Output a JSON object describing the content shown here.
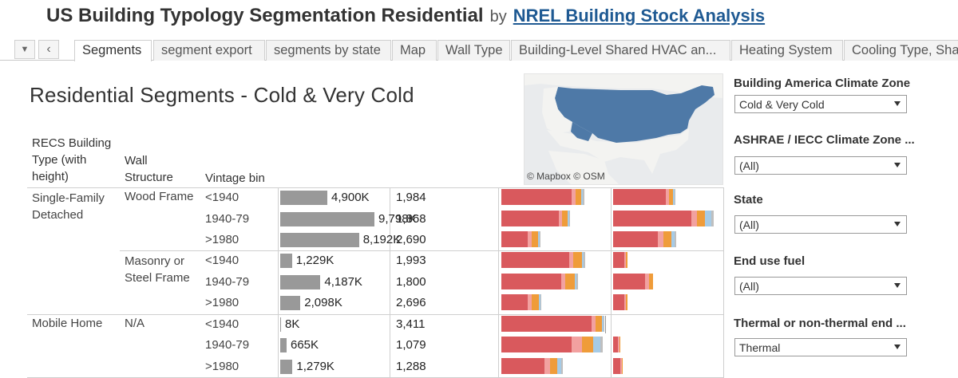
{
  "header": {
    "title": "US Building Typology Segmentation Residential",
    "by": "by",
    "author": "NREL Building Stock Analysis"
  },
  "tabs": {
    "nav_down": "▼",
    "nav_left": "‹",
    "items": [
      "Segments",
      "segment export",
      "segments by state",
      "Map",
      "Wall Type",
      "Building-Level Shared HVAC an...",
      "Heating System",
      "Cooling Type, Sha"
    ],
    "active_index": 0
  },
  "sheet": {
    "title": "Residential Segments - Cold & Very Cold"
  },
  "map": {
    "attribution": "© Mapbox © OSM",
    "colors": {
      "land": "#f3f3f1",
      "water": "#e9ebed",
      "highlight": "#4e79a7"
    }
  },
  "table": {
    "col_headers": {
      "building_type": "RECS Building Type (with height)",
      "wall": "Wall Structure",
      "vintage": "Vintage bin"
    },
    "groups": [
      {
        "type": "Single-Family Detached",
        "wall": "Wood Frame"
      },
      {
        "type": "",
        "wall": "Masonry or Steel Frame"
      },
      {
        "type": "Mobile Home",
        "wall": "N/A"
      }
    ],
    "rows": [
      {
        "vintage": "<1940",
        "units": "4,900K",
        "units_value": 4900,
        "count": "1,984",
        "stack1": [
          88,
          5,
          7,
          2,
          2
        ],
        "stack2": [
          66,
          4,
          5,
          2,
          1
        ]
      },
      {
        "vintage": "1940-79",
        "units": "9,798K",
        "units_value": 9798,
        "count": "1,868",
        "stack1": [
          72,
          4,
          7,
          2,
          1
        ],
        "stack2": [
          98,
          7,
          10,
          8,
          3
        ]
      },
      {
        "vintage": ">1980",
        "units": "8,192K",
        "units_value": 8192,
        "count": "2,690",
        "stack1": [
          33,
          5,
          8,
          2,
          1
        ],
        "stack2": [
          56,
          7,
          10,
          4,
          2
        ]
      },
      {
        "vintage": "<1940",
        "units": "1,229K",
        "units_value": 1229,
        "count": "1,993",
        "stack1": [
          85,
          5,
          11,
          2,
          2
        ],
        "stack2": [
          14,
          2,
          2,
          0,
          0
        ]
      },
      {
        "vintage": "1940-79",
        "units": "4,187K",
        "units_value": 4187,
        "count": "1,800",
        "stack1": [
          75,
          5,
          12,
          2,
          2
        ],
        "stack2": [
          40,
          5,
          5,
          0,
          0
        ]
      },
      {
        "vintage": ">1980",
        "units": "2,098K",
        "units_value": 2098,
        "count": "2,696",
        "stack1": [
          33,
          5,
          9,
          2,
          1
        ],
        "stack2": [
          14,
          2,
          2,
          0,
          0
        ]
      },
      {
        "vintage": "<1940",
        "units": "8K",
        "units_value": 8,
        "count": "3,411",
        "stack1": [
          113,
          5,
          8,
          2,
          1
        ],
        "stack2": [
          0,
          0,
          0,
          0,
          0
        ]
      },
      {
        "vintage": "1940-79",
        "units": "665K",
        "units_value": 665,
        "count": "1,079",
        "stack1": [
          88,
          13,
          14,
          9,
          3
        ],
        "stack2": [
          6,
          2,
          1,
          0,
          0
        ]
      },
      {
        "vintage": ">1980",
        "units": "1,279K",
        "units_value": 1279,
        "count": "1,288",
        "stack1": [
          54,
          7,
          9,
          5,
          2
        ],
        "stack2": [
          9,
          2,
          1,
          0,
          0
        ]
      }
    ],
    "max_units": 9798,
    "bar_color": "#999999"
  },
  "filters": [
    {
      "label": "Building America Climate Zone",
      "value": "Cold & Very Cold"
    },
    {
      "label": "ASHRAE / IECC Climate Zone ...",
      "value": "(All)"
    },
    {
      "label": "State",
      "value": "(All)"
    },
    {
      "label": "End use fuel",
      "value": "(All)"
    },
    {
      "label": "Thermal or non-thermal end ...",
      "value": "Thermal"
    }
  ]
}
